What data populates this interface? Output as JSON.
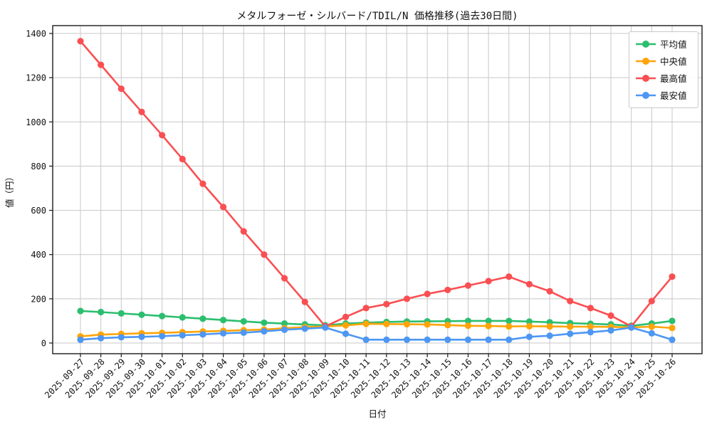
{
  "chart_data": {
    "type": "line",
    "title": "メタルフォーゼ・シルバード/TDIL/N 価格推移(過去30日間)",
    "xlabel": "日付",
    "ylabel": "値（円）",
    "ylim": [
      0,
      1400
    ],
    "yticks": [
      0,
      200,
      400,
      600,
      800,
      1000,
      1200,
      1400
    ],
    "grid": true,
    "legend_position": "upper right",
    "x_tick_rotation": 45,
    "categories": [
      "2025-09-27",
      "2025-09-28",
      "2025-09-29",
      "2025-09-30",
      "2025-10-01",
      "2025-10-02",
      "2025-10-03",
      "2025-10-04",
      "2025-10-05",
      "2025-10-06",
      "2025-10-07",
      "2025-10-08",
      "2025-10-09",
      "2025-10-10",
      "2025-10-11",
      "2025-10-12",
      "2025-10-13",
      "2025-10-14",
      "2025-10-15",
      "2025-10-16",
      "2025-10-17",
      "2025-10-18",
      "2025-10-19",
      "2025-10-20",
      "2025-10-21",
      "2025-10-22",
      "2025-10-23",
      "2025-10-24",
      "2025-10-25",
      "2025-10-26"
    ],
    "series": [
      {
        "name": "平均値",
        "color": "#2cbe6f",
        "values": [
          145,
          140,
          134,
          128,
          122,
          116,
          110,
          104,
          98,
          92,
          88,
          84,
          80,
          88,
          92,
          95,
          97,
          98,
          99,
          100,
          100,
          100,
          97,
          94,
          90,
          87,
          84,
          78,
          88,
          100
        ]
      },
      {
        "name": "中央値",
        "color": "#ffa408",
        "values": [
          30,
          38,
          41,
          44,
          46,
          49,
          52,
          55,
          58,
          61,
          67,
          72,
          75,
          80,
          87,
          86,
          85,
          84,
          81,
          78,
          77,
          75,
          76,
          75,
          74,
          74,
          73,
          71,
          74,
          68
        ]
      },
      {
        "name": "最高値",
        "color": "#fa4f52",
        "values": [
          1365,
          1258,
          1150,
          1045,
          940,
          832,
          720,
          615,
          505,
          400,
          293,
          186,
          75,
          118,
          158,
          176,
          200,
          222,
          240,
          260,
          280,
          300,
          266,
          234,
          190,
          158,
          124,
          75,
          190,
          300
        ]
      },
      {
        "name": "最安値",
        "color": "#4d97f3",
        "values": [
          15,
          22,
          26,
          28,
          31,
          35,
          39,
          44,
          47,
          53,
          60,
          65,
          70,
          42,
          15,
          15,
          15,
          15,
          15,
          15,
          15,
          15,
          28,
          33,
          42,
          49,
          57,
          70,
          44,
          15
        ]
      }
    ]
  }
}
